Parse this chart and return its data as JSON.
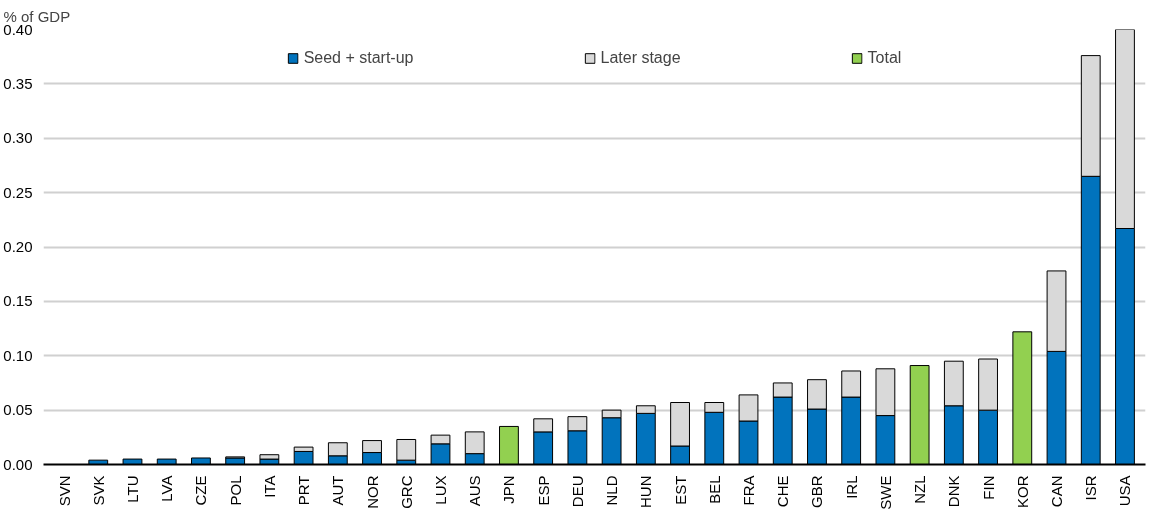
{
  "chart_data": {
    "type": "bar",
    "stacked": true,
    "ylabel": "% of GDP",
    "categories": [
      "SVN",
      "SVK",
      "LTU",
      "LVA",
      "CZE",
      "POL",
      "ITA",
      "PRT",
      "AUT",
      "NOR",
      "GRC",
      "LUX",
      "AUS",
      "JPN",
      "ESP",
      "DEU",
      "NLD",
      "HUN",
      "EST",
      "BEL",
      "FRA",
      "CHE",
      "GBR",
      "IRL",
      "SWE",
      "NZL",
      "DNK",
      "FIN",
      "KOR",
      "CAN",
      "ISR",
      "USA"
    ],
    "series": [
      {
        "name": "Seed + start-up",
        "color": "#0173bd",
        "values": [
          null,
          0.004,
          0.005,
          0.005,
          0.006,
          0.006,
          0.005,
          0.012,
          0.008,
          0.011,
          0.004,
          0.019,
          0.01,
          null,
          0.03,
          0.031,
          0.043,
          0.047,
          0.017,
          0.048,
          0.04,
          0.062,
          0.051,
          0.062,
          0.045,
          null,
          0.054,
          0.05,
          null,
          0.104,
          0.265,
          0.217
        ]
      },
      {
        "name": "Later stage",
        "color": "#d9d9d9",
        "values": [
          null,
          null,
          null,
          null,
          null,
          0.001,
          0.004,
          0.004,
          0.012,
          0.011,
          0.019,
          0.008,
          0.02,
          null,
          0.012,
          0.013,
          0.007,
          0.007,
          0.04,
          0.009,
          0.024,
          0.013,
          0.027,
          0.024,
          0.043,
          null,
          0.041,
          0.047,
          null,
          0.074,
          0.111,
          0.183
        ]
      },
      {
        "name": "Total",
        "color": "#92d050",
        "values": [
          null,
          null,
          null,
          null,
          null,
          null,
          null,
          null,
          null,
          null,
          null,
          null,
          null,
          0.035,
          null,
          null,
          null,
          null,
          null,
          null,
          null,
          null,
          null,
          null,
          null,
          0.091,
          null,
          null,
          0.122,
          null,
          null,
          null
        ]
      }
    ],
    "ylim": [
      0,
      0.4
    ],
    "yticks": [
      {
        "value": 0,
        "label": "0.00"
      },
      0.05,
      {
        "value": 0.1,
        "label": "0.10"
      },
      0.15,
      {
        "value": 0.2,
        "label": "0.20"
      },
      0.25,
      {
        "value": 0.3,
        "label": "0.30"
      },
      0.35,
      {
        "value": 0.4,
        "label": "0.40"
      }
    ],
    "grid": "y",
    "legend": "top"
  }
}
